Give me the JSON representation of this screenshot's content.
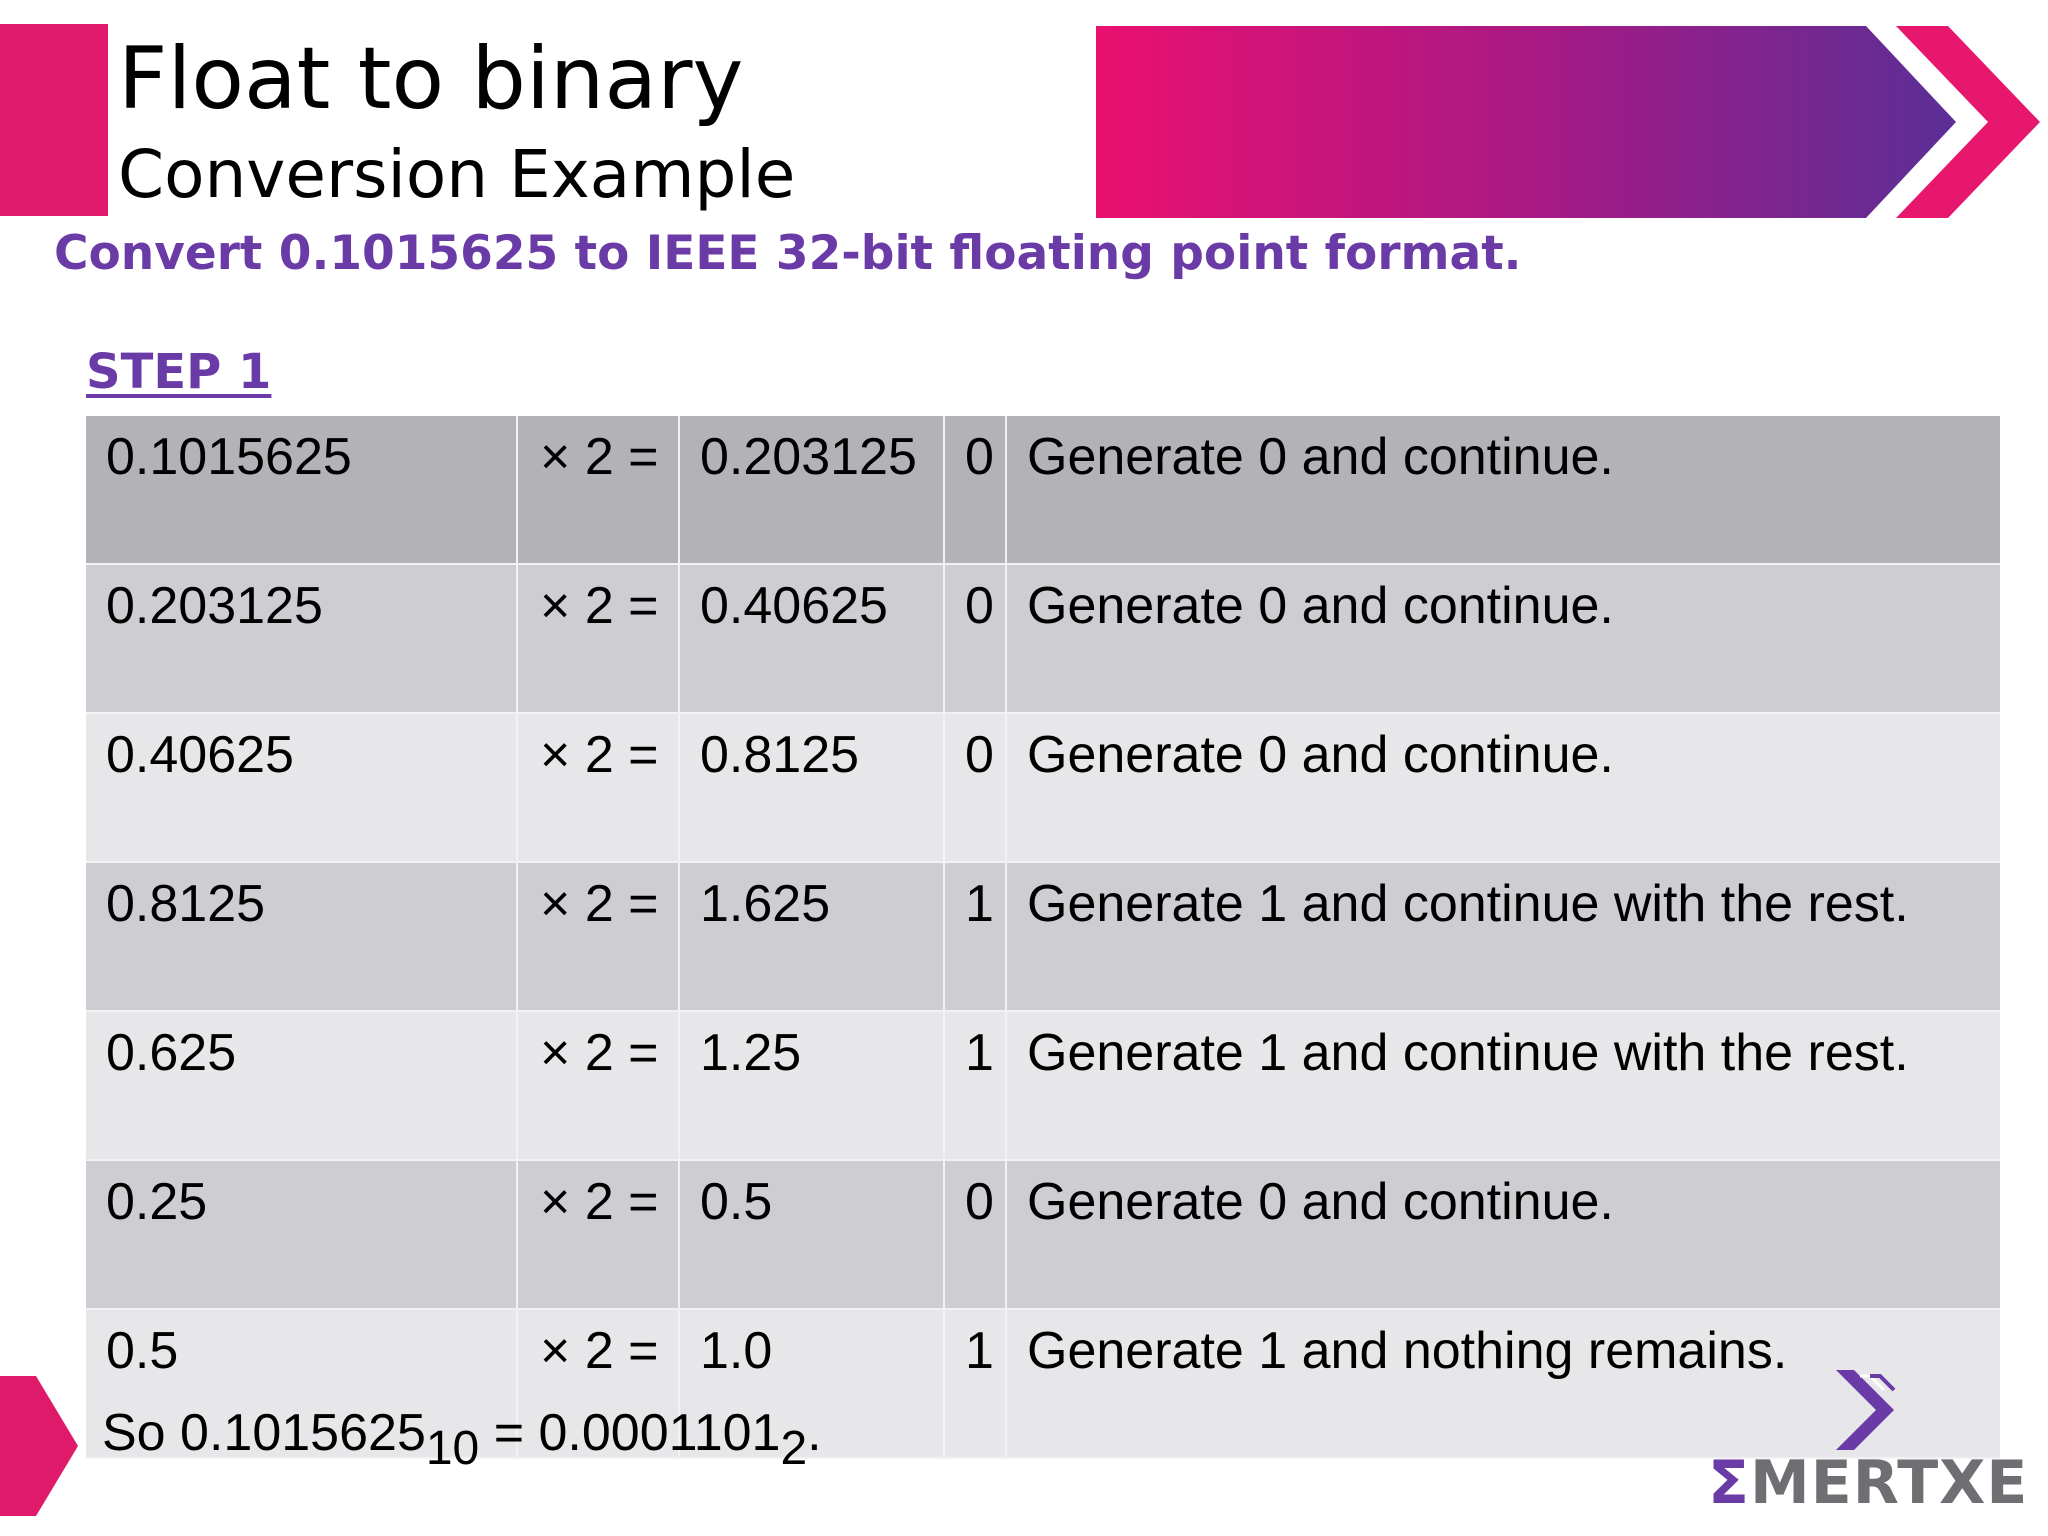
{
  "header": {
    "title": "Float to binary",
    "subtitle": "Conversion Example"
  },
  "question": "Convert 0.1015625 to IEEE 32-bit floating point format.",
  "step_label": "STEP 1",
  "rows": [
    {
      "value": "0.1015625",
      "op": "× 2 =",
      "result": "0.203125",
      "bit": "0",
      "note": "Generate 0 and continue."
    },
    {
      "value": "0.203125",
      "op": "× 2 =",
      "result": "0.40625",
      "bit": "0",
      "note": "Generate 0 and continue."
    },
    {
      "value": "0.40625",
      "op": "× 2 =",
      "result": "0.8125",
      "bit": "0",
      "note": "Generate 0 and continue."
    },
    {
      "value": "0.8125",
      "op": "× 2 =",
      "result": "1.625",
      "bit": "1",
      "note": "Generate 1 and continue with the rest."
    },
    {
      "value": "0.625",
      "op": "× 2 =",
      "result": "1.25",
      "bit": "1",
      "note": "Generate 1 and continue with the rest."
    },
    {
      "value": "0.25",
      "op": "× 2 =",
      "result": "0.5",
      "bit": "0",
      "note": "Generate 0 and continue."
    },
    {
      "value": "0.5",
      "op": "× 2 =",
      "result": "1.0",
      "bit": "1",
      "note": "Generate 1 and nothing remains."
    }
  ],
  "conclusion": {
    "prefix": "So 0.1015625",
    "base_from": "10",
    "equals": " = 0.0001101",
    "base_to": "2",
    "suffix": "."
  },
  "logo": {
    "sigma": "Σ",
    "text": "MERTXE"
  },
  "colors": {
    "accent_pink": "#e01a6a",
    "accent_purple": "#6a3aa6",
    "row_dark": "#b3b2b6",
    "row_mid": "#cecdd1",
    "row_light": "#e7e6e9"
  }
}
